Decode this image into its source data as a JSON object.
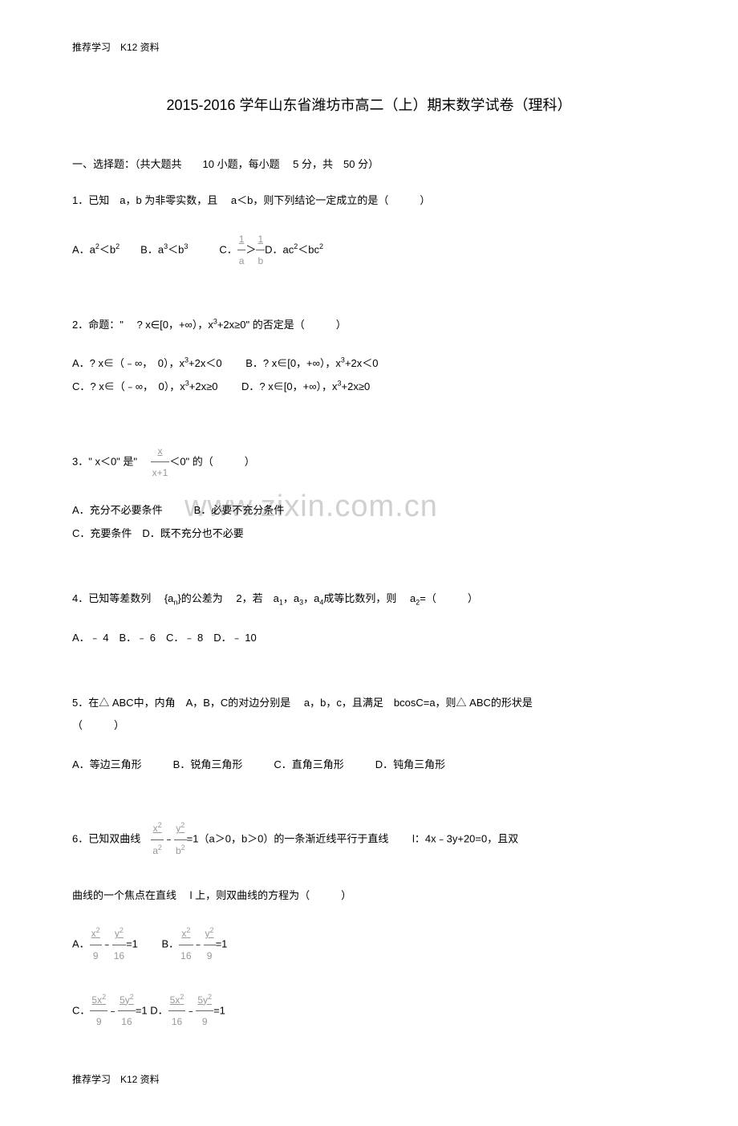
{
  "header": "推荐学习　K12 资料",
  "footer": "推荐学习　K12 资料",
  "title": "2015-2016 学年山东省潍坊市高二（上）期末数学试卷（理科）",
  "watermark": "www.zixin.com.cn",
  "section_header": "一、选择题：（共大题共　　10 小题，每小题　 5 分，共　50 分）",
  "q1": {
    "text": "1．已知　a，b 为非零实数，且　 a＜b，则下列结论一定成立的是（　　　）",
    "opts_prefix_a": "A．a",
    "opts_prefix_b": "＜b",
    "opts_b_label": "　　B．a",
    "opts_b_suffix": "＜b",
    "opts_c": "　　　C．",
    "opts_c_mid": "＞",
    "opts_d": "D．ac",
    "opts_d_suffix": "＜bc"
  },
  "q2": {
    "text": "2．命题：\"　 ? x∈[0，+∞），x",
    "text_suffix": "+2x≥0\" 的否定是（　　　）",
    "opt_a": "A．? x∈（﹣∞，　0），x",
    "opt_a_suffix": "+2x＜0　　 B．? x∈[0，+∞），x",
    "opt_b_suffix": "+2x＜0",
    "opt_c": "C．? x∈（﹣∞，　0），x",
    "opt_c_suffix": "+2x≥0　　 D．? x∈[0，+∞），x",
    "opt_d_suffix": "+2x≥0"
  },
  "q3": {
    "text_prefix": "3．\" x＜0\" 是\" 　",
    "text_suffix": "＜0\" 的（　　　）",
    "opt_line1": "A．充分不必要条件　　　B．必要不充分条件",
    "opt_line2": "C．充要条件　D．既不充分也不必要"
  },
  "q4": {
    "text": "4．已知等差数列　 {a",
    "text_mid": "}的公差为　 2，若　a",
    "text_mid2": "，a",
    "text_mid3": "，a",
    "text_suffix": "成等比数列，则　 a",
    "text_end": "=（　　　）",
    "opts": "A．﹣ 4　B．﹣ 6　C．﹣ 8　D．﹣ 10"
  },
  "q5": {
    "text": "5．在△ ABC中，内角　A，B，C的对边分别是　 a，b，c，且满足　bcosC=a，则△ ABC的形状是",
    "text_line2": "（　　　）",
    "opts": "A．等边三角形　　　B．锐角三角形　　　C．直角三角形　　　D．钝角三角形"
  },
  "q6": {
    "text_prefix": "6．已知双曲线　",
    "text_mid": "﹣",
    "text_suffix": "=1（a＞0，b＞0）的一条渐近线平行于直线　　 l：4x﹣3y+20=0，且双",
    "text_line2": "曲线的一个焦点在直线　 l 上，则双曲线的方程为（　　　）",
    "opt_a_prefix": "A．",
    "opt_a_mid": "﹣",
    "opt_a_suffix": "=1　　 B．",
    "opt_b_mid": "﹣",
    "opt_b_suffix": "=1",
    "opt_c_prefix": "C．",
    "opt_c_mid": "﹣",
    "opt_c_suffix": "=1 D．",
    "opt_d_mid": "﹣",
    "opt_d_suffix": "=1"
  }
}
